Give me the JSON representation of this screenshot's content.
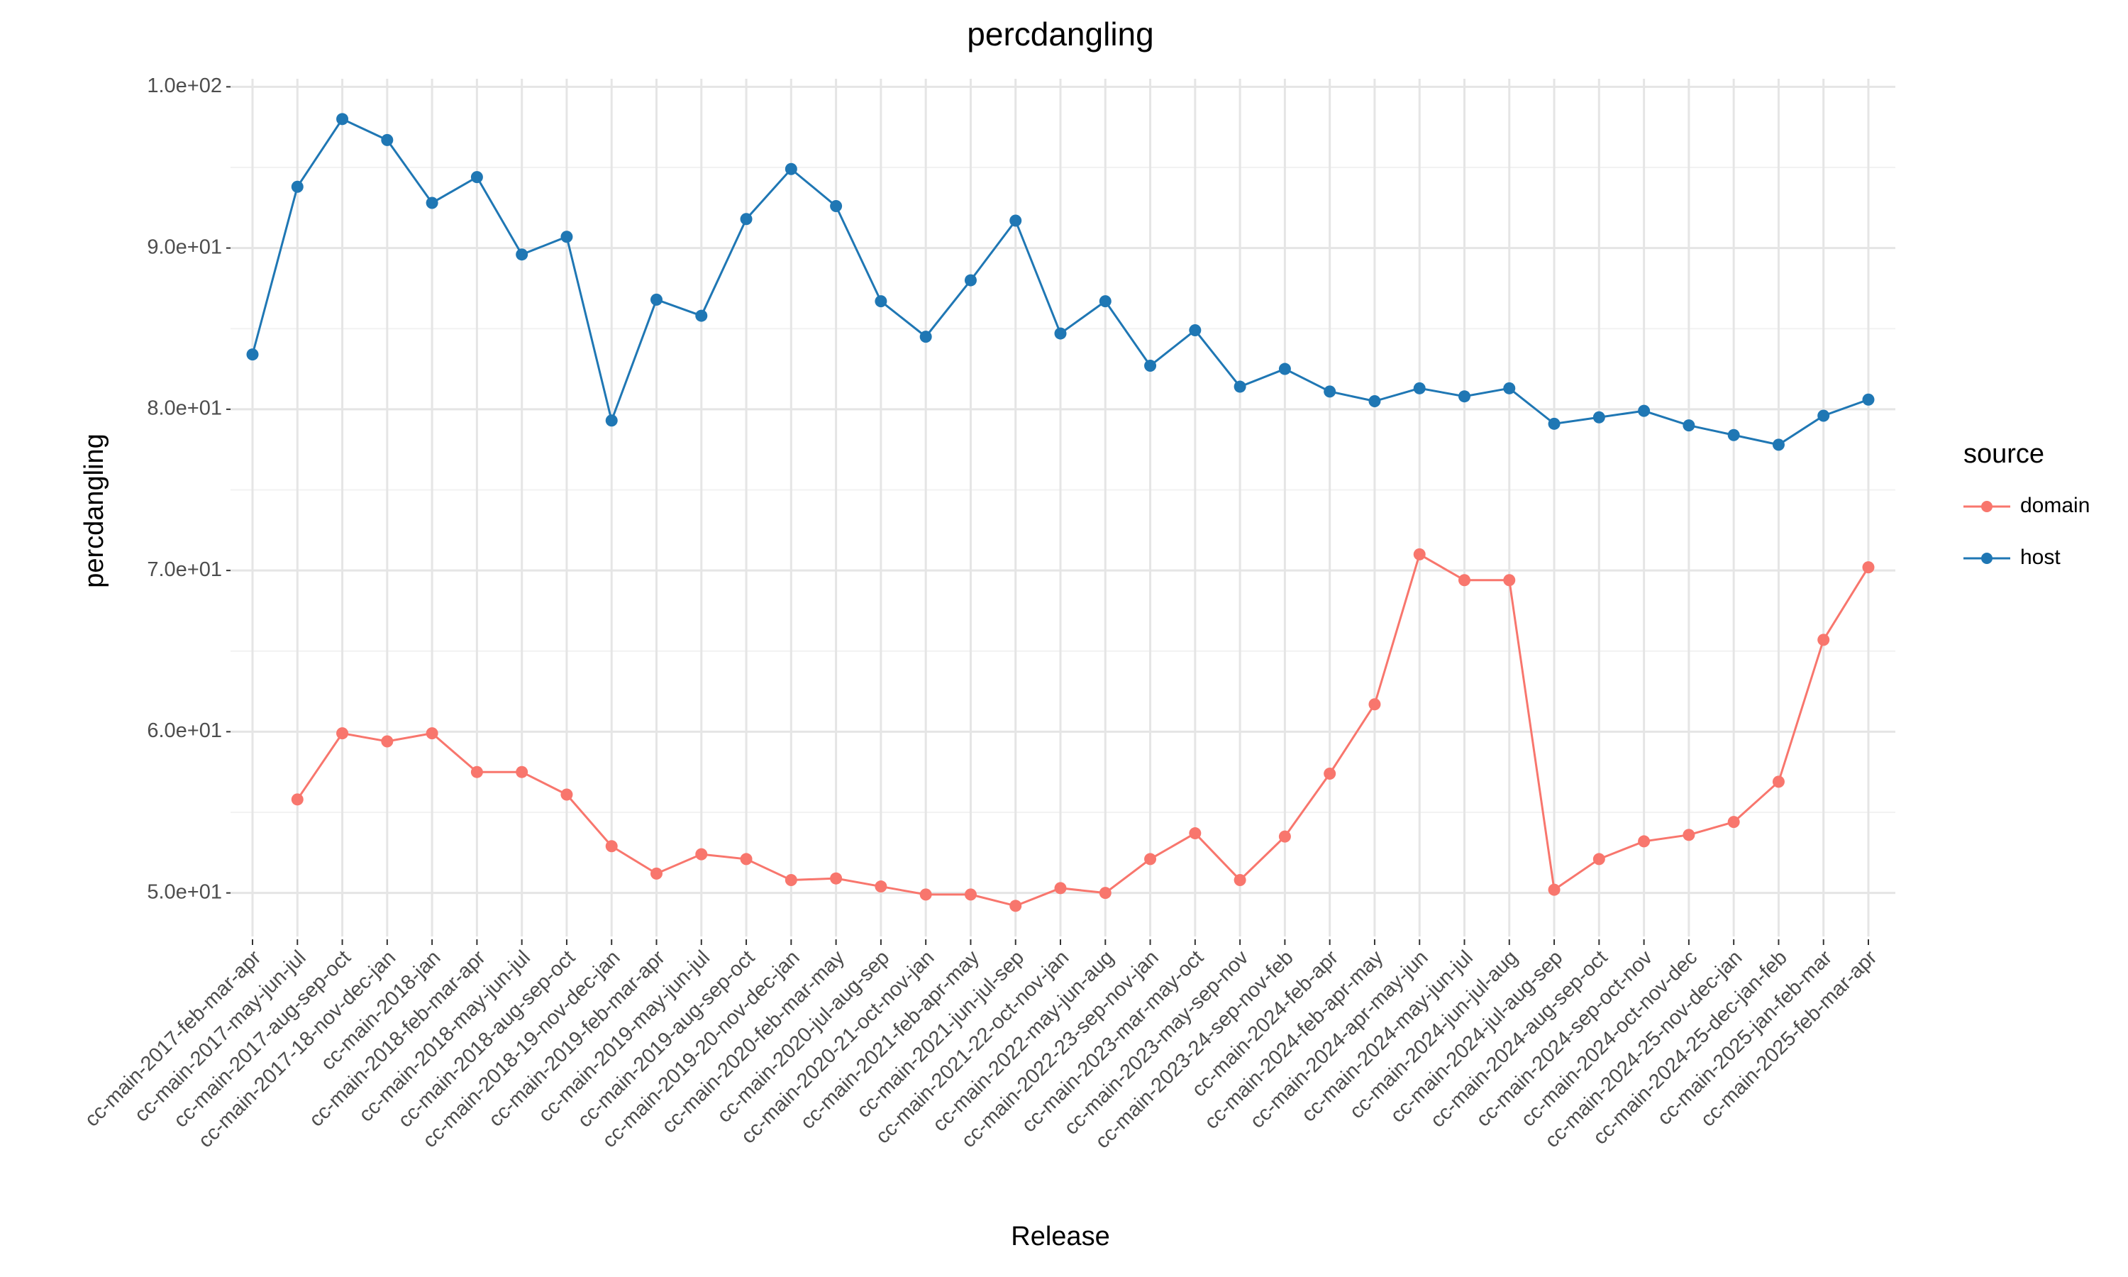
{
  "chart_data": {
    "type": "line",
    "title": "percdangling",
    "x_label": "Release",
    "y_label": "percdangling",
    "categories": [
      "cc-main-2017-feb-mar-apr",
      "cc-main-2017-may-jun-jul",
      "cc-main-2017-aug-sep-oct",
      "cc-main-2017-18-nov-dec-jan",
      "cc-main-2018-jan",
      "cc-main-2018-feb-mar-apr",
      "cc-main-2018-may-jun-jul",
      "cc-main-2018-aug-sep-oct",
      "cc-main-2018-19-nov-dec-jan",
      "cc-main-2019-feb-mar-apr",
      "cc-main-2019-may-jun-jul",
      "cc-main-2019-aug-sep-oct",
      "cc-main-2019-20-nov-dec-jan",
      "cc-main-2020-feb-mar-may",
      "cc-main-2020-jul-aug-sep",
      "cc-main-2020-21-oct-nov-jan",
      "cc-main-2021-feb-apr-may",
      "cc-main-2021-jun-jul-sep",
      "cc-main-2021-22-oct-nov-jan",
      "cc-main-2022-may-jun-aug",
      "cc-main-2022-23-sep-nov-jan",
      "cc-main-2023-mar-may-oct",
      "cc-main-2023-may-sep-nov",
      "cc-main-2023-24-sep-nov-feb",
      "cc-main-2024-feb-apr",
      "cc-main-2024-feb-apr-may",
      "cc-main-2024-apr-may-jun",
      "cc-main-2024-may-jun-jul",
      "cc-main-2024-jun-jul-aug",
      "cc-main-2024-jul-aug-sep",
      "cc-main-2024-aug-sep-oct",
      "cc-main-2024-sep-oct-nov",
      "cc-main-2024-oct-nov-dec",
      "cc-main-2024-25-nov-dec-jan",
      "cc-main-2024-25-dec-jan-feb",
      "cc-main-2025-jan-feb-mar",
      "cc-main-2025-feb-mar-apr"
    ],
    "series": [
      {
        "name": "domain",
        "color": "#f8766d",
        "values": [
          null,
          55.8,
          59.9,
          59.4,
          59.9,
          57.5,
          57.5,
          56.1,
          52.9,
          51.2,
          52.4,
          52.1,
          50.8,
          50.9,
          50.4,
          49.9,
          49.9,
          49.2,
          50.3,
          50.0,
          52.1,
          53.7,
          50.8,
          53.5,
          57.4,
          61.7,
          71.0,
          69.4,
          69.4,
          50.2,
          52.1,
          53.2,
          53.6,
          54.4,
          56.9,
          65.7,
          70.2
        ]
      },
      {
        "name": "host",
        "color": "#1f77b4",
        "values": [
          83.4,
          93.8,
          98.0,
          96.7,
          92.8,
          94.4,
          89.6,
          90.7,
          79.3,
          86.8,
          85.8,
          91.8,
          94.9,
          92.6,
          86.7,
          84.5,
          88.0,
          91.7,
          84.7,
          86.7,
          82.7,
          84.9,
          81.4,
          82.5,
          81.1,
          80.5,
          81.3,
          80.8,
          81.3,
          79.1,
          79.5,
          79.9,
          79.0,
          78.4,
          77.8,
          79.6,
          80.6
        ]
      }
    ],
    "ylim": [
      47.3,
      100.5
    ],
    "yticks": [
      {
        "value": 50,
        "label": "5.0e+01"
      },
      {
        "value": 60,
        "label": "6.0e+01"
      },
      {
        "value": 70,
        "label": "7.0e+01"
      },
      {
        "value": 80,
        "label": "8.0e+01"
      },
      {
        "value": 90,
        "label": "9.0e+01"
      },
      {
        "value": 100,
        "label": "1.0e+02"
      }
    ],
    "grid": true,
    "legend": "right",
    "legend_title": "source"
  }
}
